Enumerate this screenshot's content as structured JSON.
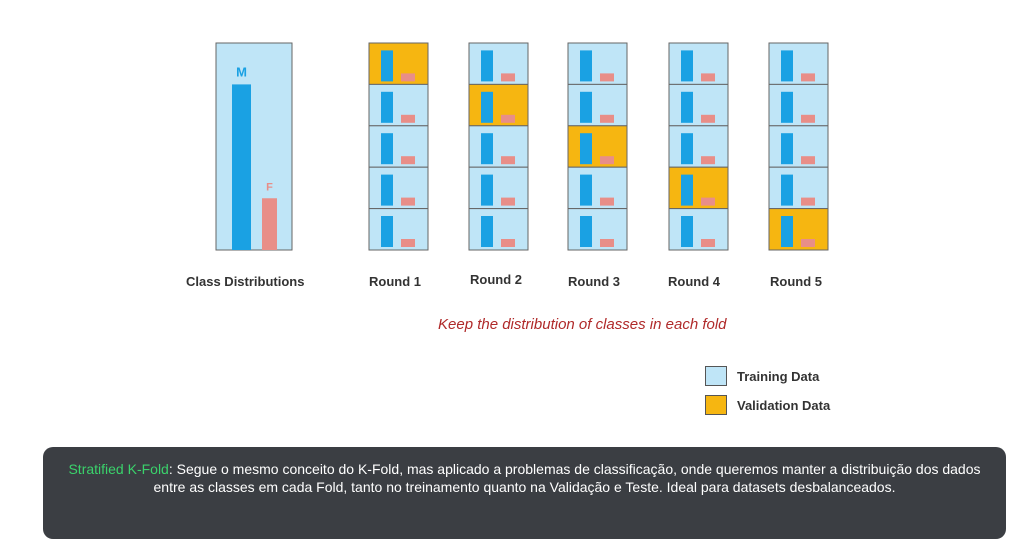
{
  "colors": {
    "training": "#bfe5f7",
    "validation": "#f6b611",
    "class_m": "#1aa1e3",
    "class_f": "#e88e88",
    "border": "#666666",
    "tagline": "#b02a2a",
    "highlight": "#3ad26b",
    "callout_bg": "#3b3e43"
  },
  "class_dist": {
    "caption": "Class Distributions",
    "label_m": "M",
    "label_f": "F",
    "m_ratio": 0.8,
    "f_ratio": 0.25
  },
  "rounds": [
    {
      "label": "Round 1",
      "validation_fold": 1
    },
    {
      "label": "Round 2",
      "validation_fold": 2
    },
    {
      "label": "Round 3",
      "validation_fold": 3
    },
    {
      "label": "Round 4",
      "validation_fold": 4
    },
    {
      "label": "Round 5",
      "validation_fold": 5
    }
  ],
  "folds_per_round": 5,
  "tagline": "Keep the distribution of classes in each fold",
  "legend": {
    "training": "Training Data",
    "validation": "Validation Data"
  },
  "callout": {
    "highlight": "Stratified K-Fold",
    "text": ": Segue o mesmo conceito do K-Fold, mas aplicado a problemas de classificação, onde queremos manter a distribuição dos dados entre as classes em cada Fold, tanto no treinamento quanto na Validação e Teste. Ideal para datasets desbalanceados."
  }
}
